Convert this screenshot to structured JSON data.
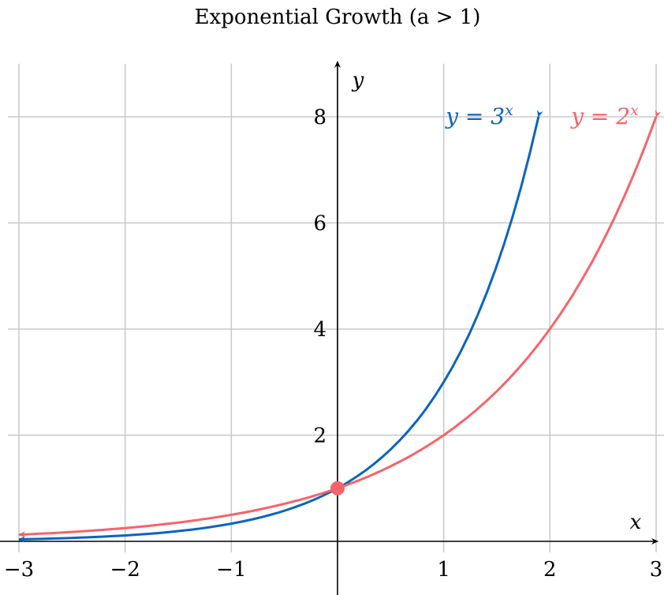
{
  "chart_data": {
    "type": "line",
    "title": "Exponential Growth (a > 1)",
    "xlabel": "x",
    "ylabel": "y",
    "xlim": [
      -3,
      3
    ],
    "ylim": [
      0,
      9
    ],
    "grid": true,
    "x_ticks": [
      -3,
      -2,
      -1,
      1,
      2,
      3
    ],
    "x_tick_labels": [
      "−3",
      "−2",
      "−1",
      "1",
      "2",
      "3"
    ],
    "y_ticks": [
      2,
      4,
      6,
      8
    ],
    "y_tick_labels": [
      "2",
      "4",
      "6",
      "8"
    ],
    "series": [
      {
        "name": "y = 3^x",
        "label_base": "y = 3",
        "label_exp": "x",
        "base": 3,
        "domain": [
          -3,
          1.893
        ],
        "color": "#0a64be"
      },
      {
        "name": "y = 2^x",
        "label_base": "y = 2",
        "label_exp": "x",
        "base": 2,
        "domain": [
          -3,
          3
        ],
        "color": "#f7636a"
      }
    ],
    "points": [
      {
        "x": 0,
        "y": 1,
        "color": "#f7636a"
      }
    ]
  }
}
